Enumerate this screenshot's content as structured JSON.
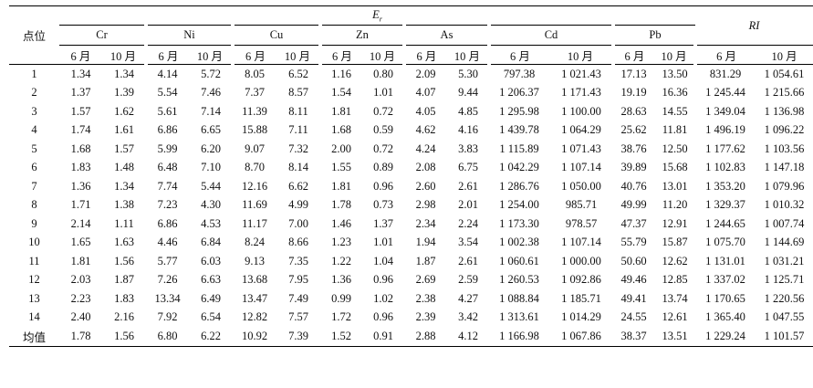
{
  "header": {
    "site_label": "点位",
    "er_label": "E",
    "er_sub": "r",
    "ri_label": "RI",
    "metals": [
      "Cr",
      "Ni",
      "Cu",
      "Zn",
      "As",
      "Cd",
      "Pb"
    ],
    "months": [
      "6 月",
      "10 月"
    ]
  },
  "rows": [
    {
      "site": "1",
      "values": [
        "1.34",
        "1.34",
        "4.14",
        "5.72",
        "8.05",
        "6.52",
        "1.16",
        "0.80",
        "2.09",
        "5.30",
        "797.38",
        "1 021.43",
        "17.13",
        "13.50",
        "831.29",
        "1 054.61"
      ]
    },
    {
      "site": "2",
      "values": [
        "1.37",
        "1.39",
        "5.54",
        "7.46",
        "7.37",
        "8.57",
        "1.54",
        "1.01",
        "4.07",
        "9.44",
        "1 206.37",
        "1 171.43",
        "19.19",
        "16.36",
        "1 245.44",
        "1 215.66"
      ]
    },
    {
      "site": "3",
      "values": [
        "1.57",
        "1.62",
        "5.61",
        "7.14",
        "11.39",
        "8.11",
        "1.81",
        "0.72",
        "4.05",
        "4.85",
        "1 295.98",
        "1 100.00",
        "28.63",
        "14.55",
        "1 349.04",
        "1 136.98"
      ]
    },
    {
      "site": "4",
      "values": [
        "1.74",
        "1.61",
        "6.86",
        "6.65",
        "15.88",
        "7.11",
        "1.68",
        "0.59",
        "4.62",
        "4.16",
        "1 439.78",
        "1 064.29",
        "25.62",
        "11.81",
        "1 496.19",
        "1 096.22"
      ]
    },
    {
      "site": "5",
      "values": [
        "1.68",
        "1.57",
        "5.99",
        "6.20",
        "9.07",
        "7.32",
        "2.00",
        "0.72",
        "4.24",
        "3.83",
        "1 115.89",
        "1 071.43",
        "38.76",
        "12.50",
        "1 177.62",
        "1 103.56"
      ]
    },
    {
      "site": "6",
      "values": [
        "1.83",
        "1.48",
        "6.48",
        "7.10",
        "8.70",
        "8.14",
        "1.55",
        "0.89",
        "2.08",
        "6.75",
        "1 042.29",
        "1 107.14",
        "39.89",
        "15.68",
        "1 102.83",
        "1 147.18"
      ]
    },
    {
      "site": "7",
      "values": [
        "1.36",
        "1.34",
        "7.74",
        "5.44",
        "12.16",
        "6.62",
        "1.81",
        "0.96",
        "2.60",
        "2.61",
        "1 286.76",
        "1 050.00",
        "40.76",
        "13.01",
        "1 353.20",
        "1 079.96"
      ]
    },
    {
      "site": "8",
      "values": [
        "1.71",
        "1.38",
        "7.23",
        "4.30",
        "11.69",
        "4.99",
        "1.78",
        "0.73",
        "2.98",
        "2.01",
        "1 254.00",
        "985.71",
        "49.99",
        "11.20",
        "1 329.37",
        "1 010.32"
      ]
    },
    {
      "site": "9",
      "values": [
        "2.14",
        "1.11",
        "6.86",
        "4.53",
        "11.17",
        "7.00",
        "1.46",
        "1.37",
        "2.34",
        "2.24",
        "1 173.30",
        "978.57",
        "47.37",
        "12.91",
        "1 244.65",
        "1 007.74"
      ]
    },
    {
      "site": "10",
      "values": [
        "1.65",
        "1.63",
        "4.46",
        "6.84",
        "8.24",
        "8.66",
        "1.23",
        "1.01",
        "1.94",
        "3.54",
        "1 002.38",
        "1 107.14",
        "55.79",
        "15.87",
        "1 075.70",
        "1 144.69"
      ]
    },
    {
      "site": "11",
      "values": [
        "1.81",
        "1.56",
        "5.77",
        "6.03",
        "9.13",
        "7.35",
        "1.22",
        "1.04",
        "1.87",
        "2.61",
        "1 060.61",
        "1 000.00",
        "50.60",
        "12.62",
        "1 131.01",
        "1 031.21"
      ]
    },
    {
      "site": "12",
      "values": [
        "2.03",
        "1.87",
        "7.26",
        "6.63",
        "13.68",
        "7.95",
        "1.36",
        "0.96",
        "2.69",
        "2.59",
        "1 260.53",
        "1 092.86",
        "49.46",
        "12.85",
        "1 337.02",
        "1 125.71"
      ]
    },
    {
      "site": "13",
      "values": [
        "2.23",
        "1.83",
        "13.34",
        "6.49",
        "13.47",
        "7.49",
        "0.99",
        "1.02",
        "2.38",
        "4.27",
        "1 088.84",
        "1 185.71",
        "49.41",
        "13.74",
        "1 170.65",
        "1 220.56"
      ]
    },
    {
      "site": "14",
      "values": [
        "2.40",
        "2.16",
        "7.92",
        "6.54",
        "12.82",
        "7.57",
        "1.72",
        "0.96",
        "2.39",
        "3.42",
        "1 313.61",
        "1 014.29",
        "24.55",
        "12.61",
        "1 365.40",
        "1 047.55"
      ]
    },
    {
      "site": "均值",
      "values": [
        "1.78",
        "1.56",
        "6.80",
        "6.22",
        "10.92",
        "7.39",
        "1.52",
        "0.91",
        "2.88",
        "4.12",
        "1 166.98",
        "1 067.86",
        "38.37",
        "13.51",
        "1 229.24",
        "1 101.57"
      ]
    }
  ]
}
